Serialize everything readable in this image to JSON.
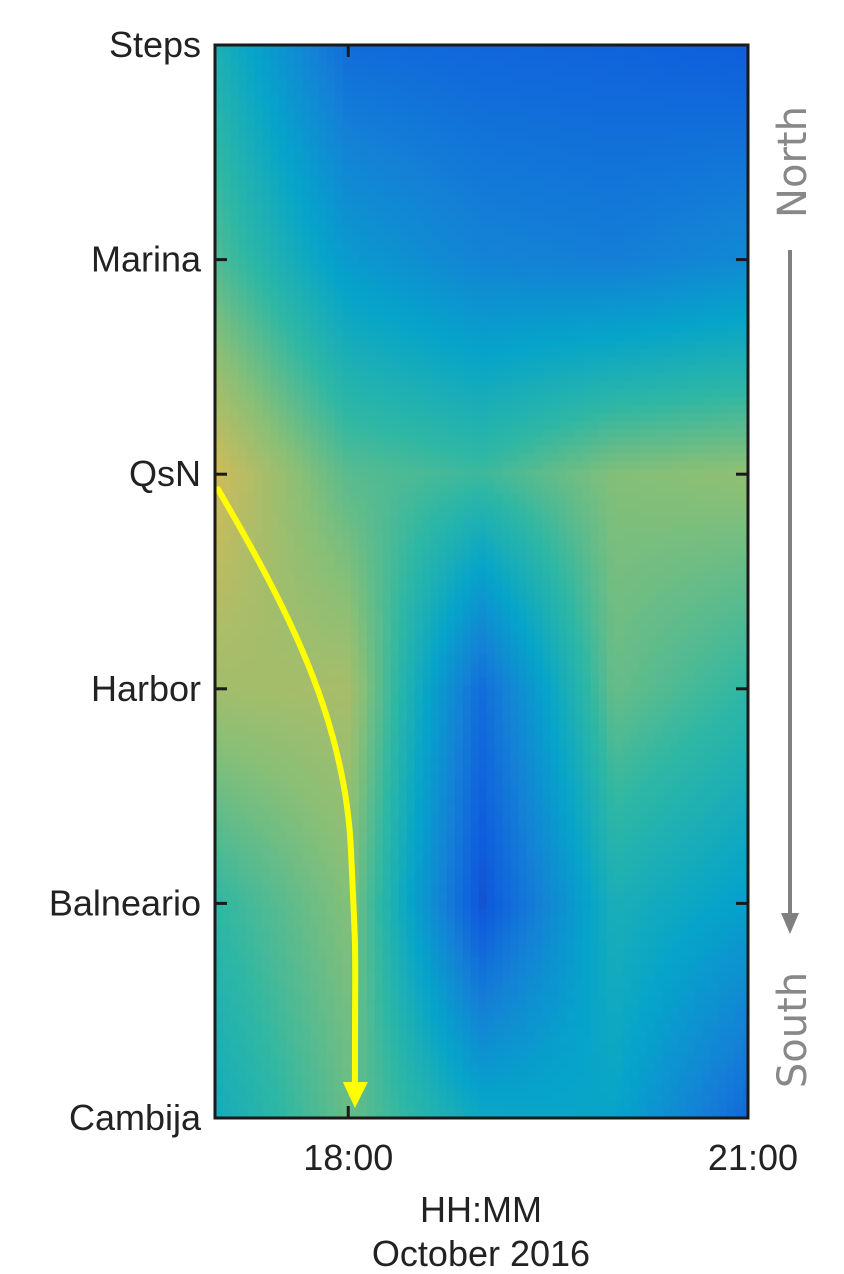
{
  "chart_data": {
    "type": "heatmap",
    "title": "",
    "xlabel": "HH:MM",
    "xlabel_sub": "October 2016",
    "ylabel": "",
    "x_tick_labels": [
      "18:00",
      "21:00"
    ],
    "x_tick_values": [
      18,
      21
    ],
    "xlim": [
      17,
      21
    ],
    "x_columns": [
      17,
      18,
      19,
      20,
      21
    ],
    "y_categories": [
      "Steps",
      "Marina",
      "QsN",
      "Harbor",
      "Balneario",
      "Cambija"
    ],
    "z_values_normalized": [
      [
        0.45,
        0.18,
        0.16,
        0.15,
        0.13
      ],
      [
        0.55,
        0.34,
        0.26,
        0.24,
        0.28
      ],
      [
        0.75,
        0.56,
        0.52,
        0.62,
        0.64
      ],
      [
        0.67,
        0.68,
        0.18,
        0.58,
        0.5
      ],
      [
        0.5,
        0.62,
        0.1,
        0.44,
        0.36
      ],
      [
        0.42,
        0.58,
        0.4,
        0.38,
        0.17
      ]
    ],
    "colormap": "parula",
    "colormap_stops": [
      "#352a87",
      "#0f5cdd",
      "#1481d6",
      "#06a4ca",
      "#2eb7a4",
      "#87bf77",
      "#d1bb59",
      "#fec832",
      "#f9fb0e"
    ],
    "annotation_arrow_color": "#ffff00",
    "annotation_arrow": {
      "from": {
        "x": 17.0,
        "y": "QsN"
      },
      "to": {
        "x": 18.05,
        "y": "Cambija"
      }
    },
    "direction_labels": {
      "top": "North",
      "bottom": "South"
    },
    "direction_arrow_color": "#808080",
    "grid": false
  }
}
